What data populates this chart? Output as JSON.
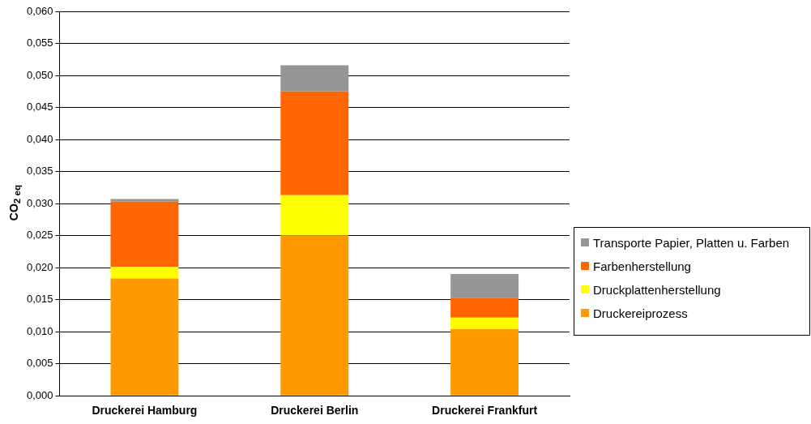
{
  "chart_data": {
    "type": "bar",
    "stacked": true,
    "ylabel": "CO$_{2 eq}$",
    "categories": [
      "Druckerei Hamburg",
      "Druckerei Berlin",
      "Druckerei Frankfurt"
    ],
    "series": [
      {
        "name": "Druckereiprozess",
        "color": "#ff9900",
        "values": [
          0.0183,
          0.025,
          0.0104
        ]
      },
      {
        "name": "Druckplattenherstellung",
        "color": "#ffff00",
        "values": [
          0.0018,
          0.0063,
          0.0018
        ]
      },
      {
        "name": "Farbenherstellung",
        "color": "#ff6600",
        "values": [
          0.0102,
          0.0162,
          0.0031
        ]
      },
      {
        "name": "Transporte Papier, Platten u. Farben",
        "color": "#969696",
        "values": [
          0.0004,
          0.0041,
          0.0037
        ]
      }
    ],
    "ylim": [
      0,
      0.06
    ],
    "yticks": [
      {
        "value": 0,
        "label": "0,000"
      },
      {
        "value": 0.005,
        "label": "0,005"
      },
      {
        "value": 0.01,
        "label": "0,010"
      },
      {
        "value": 0.015,
        "label": "0,015"
      },
      {
        "value": 0.02,
        "label": "0,020"
      },
      {
        "value": 0.025,
        "label": "0,025"
      },
      {
        "value": 0.03,
        "label": "0,030"
      },
      {
        "value": 0.035,
        "label": "0,035"
      },
      {
        "value": 0.04,
        "label": "0,040"
      },
      {
        "value": 0.045,
        "label": "0,045"
      },
      {
        "value": 0.05,
        "label": "0,050"
      },
      {
        "value": 0.055,
        "label": "0,055"
      },
      {
        "value": 0.06,
        "label": "0,060"
      }
    ],
    "grid": "y",
    "legend": "right"
  }
}
